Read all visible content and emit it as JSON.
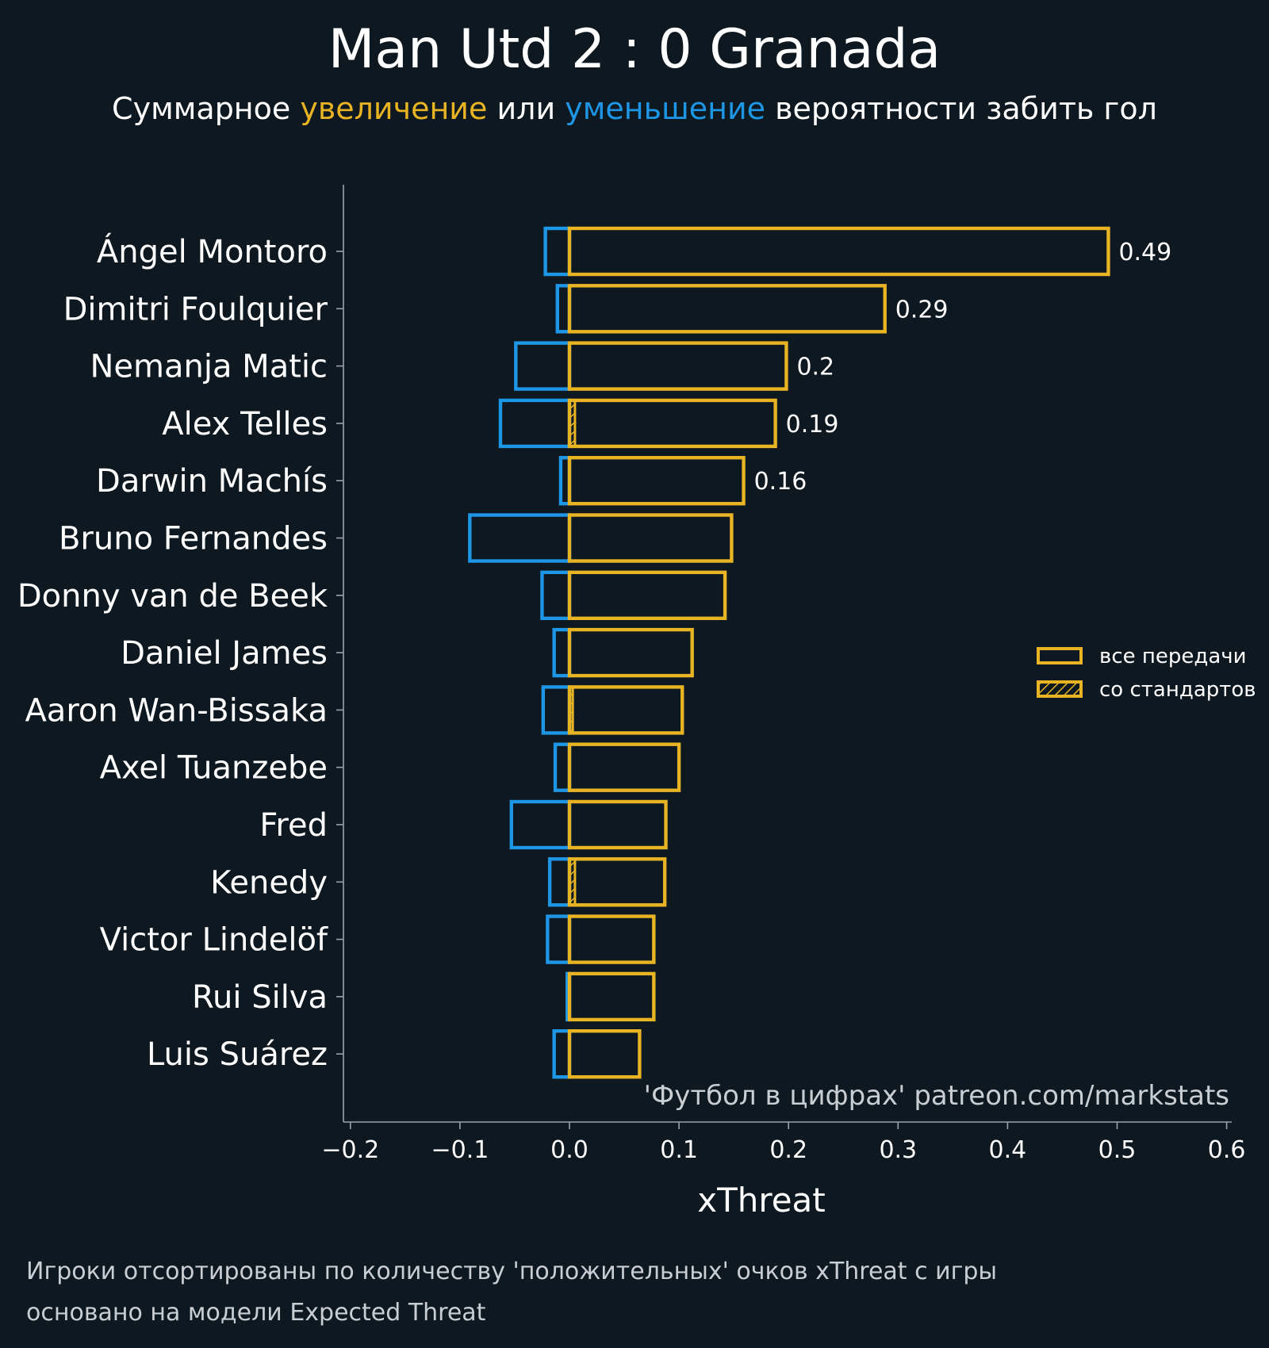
{
  "colors": {
    "background": "#0e1820",
    "positive": "#e8b423",
    "negative": "#1e96e6",
    "text": "#ffffff",
    "muted": "#c9ced3",
    "axis": "#9aa3ab"
  },
  "subtitle": {
    "part1": "Суммарное ",
    "increase": "увеличение",
    "part2": " или ",
    "decrease": "уменьшение",
    "part3": " вероятности забить гол"
  },
  "watermark": "'Футбол в цифрах' patreon.com/markstats",
  "footnotes": [
    "Игроки отсортированы по количеству 'положительных' очков xThreat с игры",
    "основано на модели Expected Threat"
  ],
  "chart_data": {
    "type": "bar",
    "orientation": "horizontal",
    "title": "Man Utd 2 : 0 Granada",
    "xlabel": "xThreat",
    "ylabel": "",
    "xlim": [
      -0.2,
      0.6
    ],
    "xticks": [
      -0.2,
      -0.1,
      0.0,
      0.1,
      0.2,
      0.3,
      0.4,
      0.5,
      0.6
    ],
    "xtick_labels": [
      "−0.2",
      "−0.1",
      "0.0",
      "0.1",
      "0.2",
      "0.3",
      "0.4",
      "0.5",
      "0.6"
    ],
    "grid": false,
    "legend_position": "right",
    "legend": [
      "все передачи",
      "со стандартов"
    ],
    "categories": [
      "Ángel Montoro",
      "Dimitri Foulquier",
      "Nemanja Matic",
      "Alex Telles",
      "Darwin Machís",
      "Bruno Fernandes",
      "Donny van de Beek",
      "Daniel James",
      "Aaron Wan-Bissaka",
      "Axel Tuanzebe",
      "Fred",
      "Kenedy",
      "Victor Lindelöf",
      "Rui Silva",
      "Luis Suárez"
    ],
    "series": [
      {
        "name": "positive",
        "values": [
          0.492,
          0.288,
          0.198,
          0.188,
          0.159,
          0.148,
          0.142,
          0.112,
          0.103,
          0.1,
          0.088,
          0.087,
          0.077,
          0.077,
          0.064
        ]
      },
      {
        "name": "negative",
        "values": [
          -0.022,
          -0.011,
          -0.049,
          -0.063,
          -0.008,
          -0.091,
          -0.025,
          -0.014,
          -0.024,
          -0.013,
          -0.053,
          -0.018,
          -0.02,
          -0.002,
          -0.014
        ]
      },
      {
        "name": "set_pieces_positive",
        "values": [
          0,
          0,
          0,
          0.005,
          0,
          0,
          0,
          0,
          0.003,
          0,
          0,
          0.005,
          0,
          0,
          0
        ]
      }
    ],
    "data_labels": [
      {
        "category": "Ángel Montoro",
        "text": "0.49"
      },
      {
        "category": "Dimitri Foulquier",
        "text": "0.29"
      },
      {
        "category": "Nemanja Matic",
        "text": "0.2"
      },
      {
        "category": "Alex Telles",
        "text": "0.19"
      },
      {
        "category": "Darwin Machís",
        "text": "0.16"
      }
    ]
  }
}
